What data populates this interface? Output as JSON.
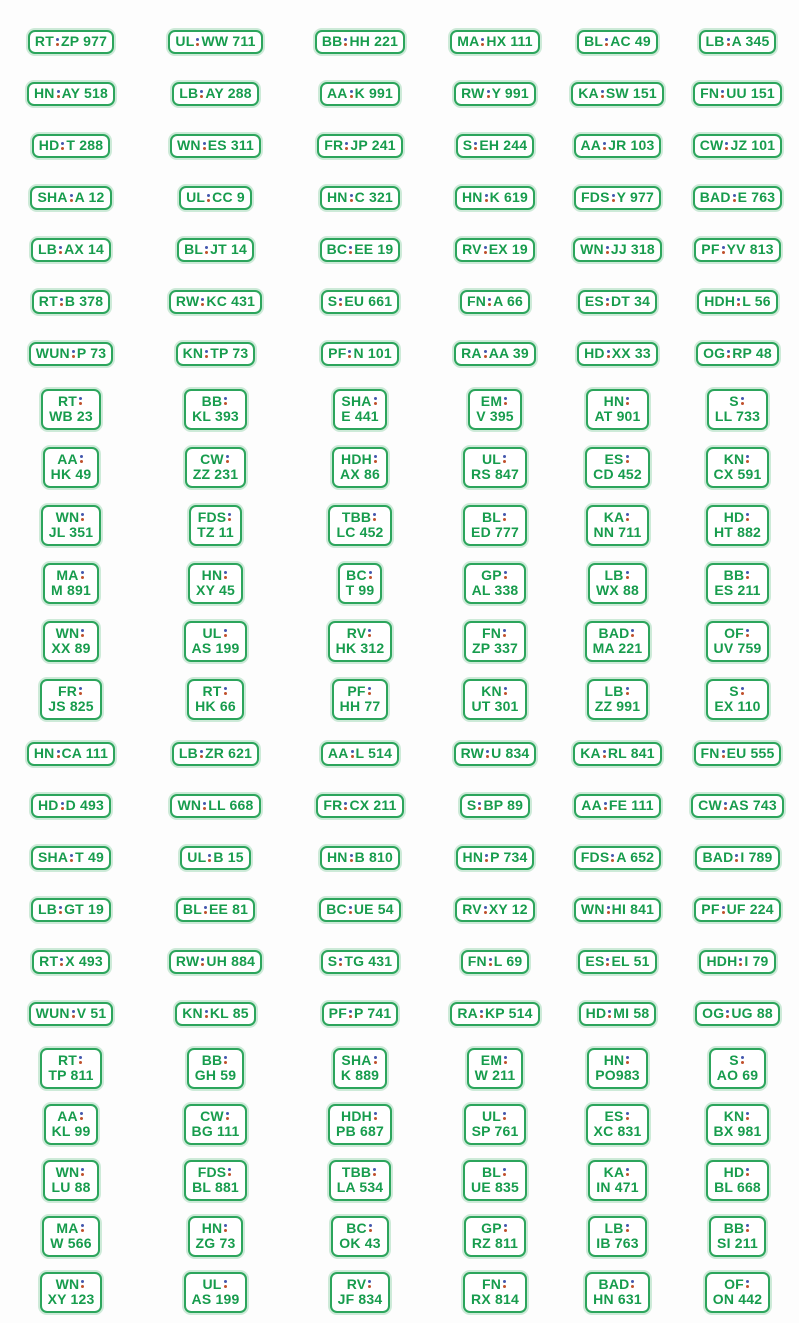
{
  "page": {
    "title": "license-plate-sheet",
    "background": "#fdfdfd"
  },
  "colors": {
    "plate_text_green": "#179c4d",
    "plate_border_green": "#2ca55c",
    "plate_halo_green": "#cdead8",
    "seal_top_blue": "#4458ae",
    "seal_bottom_red": "#c0512c"
  },
  "icons": {
    "separator": "registration-seal-icon"
  },
  "grid": {
    "columns": 6,
    "row_count": 24
  },
  "rows": [
    {
      "layout": "single",
      "plates": [
        {
          "region": "RT",
          "number": "ZP 977"
        },
        {
          "region": "UL",
          "number": "WW 711"
        },
        {
          "region": "BB",
          "number": "HH 221"
        },
        {
          "region": "MA",
          "number": "HX 111"
        },
        {
          "region": "BL",
          "number": "AC 49"
        },
        {
          "region": "LB",
          "number": "A 345"
        }
      ]
    },
    {
      "layout": "single",
      "plates": [
        {
          "region": "HN",
          "number": "AY 518"
        },
        {
          "region": "LB",
          "number": "AY 288"
        },
        {
          "region": "AA",
          "number": "K 991"
        },
        {
          "region": "RW",
          "number": "Y 991"
        },
        {
          "region": "KA",
          "number": "SW 151"
        },
        {
          "region": "FN",
          "number": "UU 151"
        }
      ]
    },
    {
      "layout": "single",
      "plates": [
        {
          "region": "HD",
          "number": "T 288"
        },
        {
          "region": "WN",
          "number": "ES 311"
        },
        {
          "region": "FR",
          "number": "JP 241"
        },
        {
          "region": "S",
          "number": "EH 244"
        },
        {
          "region": "AA",
          "number": "JR 103"
        },
        {
          "region": "CW",
          "number": "JZ 101"
        }
      ]
    },
    {
      "layout": "single",
      "plates": [
        {
          "region": "SHA",
          "number": "A 12"
        },
        {
          "region": "UL",
          "number": "CC 9"
        },
        {
          "region": "HN",
          "number": "C 321"
        },
        {
          "region": "HN",
          "number": "K 619"
        },
        {
          "region": "FDS",
          "number": "Y 977"
        },
        {
          "region": "BAD",
          "number": "E 763"
        }
      ]
    },
    {
      "layout": "single",
      "plates": [
        {
          "region": "LB",
          "number": "AX 14"
        },
        {
          "region": "BL",
          "number": "JT 14"
        },
        {
          "region": "BC",
          "number": "EE 19"
        },
        {
          "region": "RV",
          "number": "EX 19"
        },
        {
          "region": "WN",
          "number": "JJ 318"
        },
        {
          "region": "PF",
          "number": "YV 813"
        }
      ]
    },
    {
      "layout": "single",
      "plates": [
        {
          "region": "RT",
          "number": "B 378"
        },
        {
          "region": "RW",
          "number": "KC 431"
        },
        {
          "region": "S",
          "number": "EU 661"
        },
        {
          "region": "FN",
          "number": "A 66"
        },
        {
          "region": "ES",
          "number": "DT 34"
        },
        {
          "region": "HDH",
          "number": "L 56"
        }
      ]
    },
    {
      "layout": "single",
      "plates": [
        {
          "region": "WUN",
          "number": "P 73"
        },
        {
          "region": "KN",
          "number": "TP 73"
        },
        {
          "region": "PF",
          "number": "N 101"
        },
        {
          "region": "RA",
          "number": "AA 39"
        },
        {
          "region": "HD",
          "number": "XX 33"
        },
        {
          "region": "OG",
          "number": "RP 48"
        }
      ]
    },
    {
      "layout": "double",
      "plates": [
        {
          "region": "RT",
          "number": "WB 23"
        },
        {
          "region": "BB",
          "number": "KL 393"
        },
        {
          "region": "SHA",
          "number": "E 441"
        },
        {
          "region": "EM",
          "number": "V 395"
        },
        {
          "region": "HN",
          "number": "AT 901"
        },
        {
          "region": "S",
          "number": "LL 733"
        }
      ]
    },
    {
      "layout": "double",
      "plates": [
        {
          "region": "AA",
          "number": "HK 49"
        },
        {
          "region": "CW",
          "number": "ZZ 231"
        },
        {
          "region": "HDH",
          "number": "AX 86"
        },
        {
          "region": "UL",
          "number": "RS 847"
        },
        {
          "region": "ES",
          "number": "CD 452"
        },
        {
          "region": "KN",
          "number": "CX 591"
        }
      ]
    },
    {
      "layout": "double",
      "plates": [
        {
          "region": "WN",
          "number": "JL 351"
        },
        {
          "region": "FDS",
          "number": "TZ 11"
        },
        {
          "region": "TBB",
          "number": "LC 452"
        },
        {
          "region": "BL",
          "number": "ED 777"
        },
        {
          "region": "KA",
          "number": "NN 711"
        },
        {
          "region": "HD",
          "number": "HT 882"
        }
      ]
    },
    {
      "layout": "double",
      "plates": [
        {
          "region": "MA",
          "number": "M 891"
        },
        {
          "region": "HN",
          "number": "XY 45"
        },
        {
          "region": "BC",
          "number": "T 99"
        },
        {
          "region": "GP",
          "number": "AL 338"
        },
        {
          "region": "LB",
          "number": "WX 88"
        },
        {
          "region": "BB",
          "number": "ES 211"
        }
      ]
    },
    {
      "layout": "double",
      "plates": [
        {
          "region": "WN",
          "number": "XX 89"
        },
        {
          "region": "UL",
          "number": "AS 199"
        },
        {
          "region": "RV",
          "number": "HK 312"
        },
        {
          "region": "FN",
          "number": "ZP 337"
        },
        {
          "region": "BAD",
          "number": "MA 221"
        },
        {
          "region": "OF",
          "number": "UV 759"
        }
      ]
    },
    {
      "layout": "double",
      "plates": [
        {
          "region": "FR",
          "number": "JS 825"
        },
        {
          "region": "RT",
          "number": "HK 66"
        },
        {
          "region": "PF",
          "number": "HH 77"
        },
        {
          "region": "KN",
          "number": "UT 301"
        },
        {
          "region": "LB",
          "number": "ZZ 991"
        },
        {
          "region": "S",
          "number": "EX 110"
        }
      ]
    },
    {
      "layout": "single",
      "plates": [
        {
          "region": "HN",
          "number": "CA 111"
        },
        {
          "region": "LB",
          "number": "ZR 621"
        },
        {
          "region": "AA",
          "number": "L 514"
        },
        {
          "region": "RW",
          "number": "U 834"
        },
        {
          "region": "KA",
          "number": "RL 841"
        },
        {
          "region": "FN",
          "number": "EU 555"
        }
      ]
    },
    {
      "layout": "single",
      "plates": [
        {
          "region": "HD",
          "number": "D 493"
        },
        {
          "region": "WN",
          "number": "LL 668"
        },
        {
          "region": "FR",
          "number": "CX 211"
        },
        {
          "region": "S",
          "number": "BP 89"
        },
        {
          "region": "AA",
          "number": "FE 111"
        },
        {
          "region": "CW",
          "number": "AS 743"
        }
      ]
    },
    {
      "layout": "single",
      "plates": [
        {
          "region": "SHA",
          "number": "T 49"
        },
        {
          "region": "UL",
          "number": "B 15"
        },
        {
          "region": "HN",
          "number": "B 810"
        },
        {
          "region": "HN",
          "number": "P 734"
        },
        {
          "region": "FDS",
          "number": "A 652"
        },
        {
          "region": "BAD",
          "number": "I 789"
        }
      ]
    },
    {
      "layout": "single",
      "plates": [
        {
          "region": "LB",
          "number": "GT 19"
        },
        {
          "region": "BL",
          "number": "EE 81"
        },
        {
          "region": "BC",
          "number": "UE 54"
        },
        {
          "region": "RV",
          "number": "XY 12"
        },
        {
          "region": "WN",
          "number": "HI 841"
        },
        {
          "region": "PF",
          "number": "UF 224"
        }
      ]
    },
    {
      "layout": "single",
      "plates": [
        {
          "region": "RT",
          "number": "X 493"
        },
        {
          "region": "RW",
          "number": "UH 884"
        },
        {
          "region": "S",
          "number": "TG 431"
        },
        {
          "region": "FN",
          "number": "L 69"
        },
        {
          "region": "ES",
          "number": "EL 51"
        },
        {
          "region": "HDH",
          "number": "I 79"
        }
      ]
    },
    {
      "layout": "single",
      "plates": [
        {
          "region": "WUN",
          "number": "V 51"
        },
        {
          "region": "KN",
          "number": "KL 85"
        },
        {
          "region": "PF",
          "number": "P 741"
        },
        {
          "region": "RA",
          "number": "KP 514"
        },
        {
          "region": "HD",
          "number": "MI 58"
        },
        {
          "region": "OG",
          "number": "UG 88"
        }
      ]
    },
    {
      "layout": "double-compact",
      "plates": [
        {
          "region": "RT",
          "number": "TP 811"
        },
        {
          "region": "BB",
          "number": "GH 59"
        },
        {
          "region": "SHA",
          "number": "K 889"
        },
        {
          "region": "EM",
          "number": "W 211"
        },
        {
          "region": "HN",
          "number": "PO983"
        },
        {
          "region": "S",
          "number": "AO 69"
        }
      ]
    },
    {
      "layout": "double-compact",
      "plates": [
        {
          "region": "AA",
          "number": "KL 99"
        },
        {
          "region": "CW",
          "number": "BG 111"
        },
        {
          "region": "HDH",
          "number": "PB 687"
        },
        {
          "region": "UL",
          "number": "SP 761"
        },
        {
          "region": "ES",
          "number": "XC 831"
        },
        {
          "region": "KN",
          "number": "BX 981"
        }
      ]
    },
    {
      "layout": "double-compact",
      "plates": [
        {
          "region": "WN",
          "number": "LU 88"
        },
        {
          "region": "FDS",
          "number": "BL 881"
        },
        {
          "region": "TBB",
          "number": "LA 534"
        },
        {
          "region": "BL",
          "number": "UE 835"
        },
        {
          "region": "KA",
          "number": "IN 471"
        },
        {
          "region": "HD",
          "number": "BL 668"
        }
      ]
    },
    {
      "layout": "double-compact",
      "plates": [
        {
          "region": "MA",
          "number": "W 566"
        },
        {
          "region": "HN",
          "number": "ZG 73"
        },
        {
          "region": "BC",
          "number": "OK 43"
        },
        {
          "region": "GP",
          "number": "RZ 811"
        },
        {
          "region": "LB",
          "number": "IB 763"
        },
        {
          "region": "BB",
          "number": "SI 211"
        }
      ]
    },
    {
      "layout": "double-compact",
      "plates": [
        {
          "region": "WN",
          "number": "XY 123"
        },
        {
          "region": "UL",
          "number": "AS 199"
        },
        {
          "region": "RV",
          "number": "JF 834"
        },
        {
          "region": "FN",
          "number": "RX 814"
        },
        {
          "region": "BAD",
          "number": "HN 631"
        },
        {
          "region": "OF",
          "number": "ON 442"
        }
      ]
    }
  ]
}
